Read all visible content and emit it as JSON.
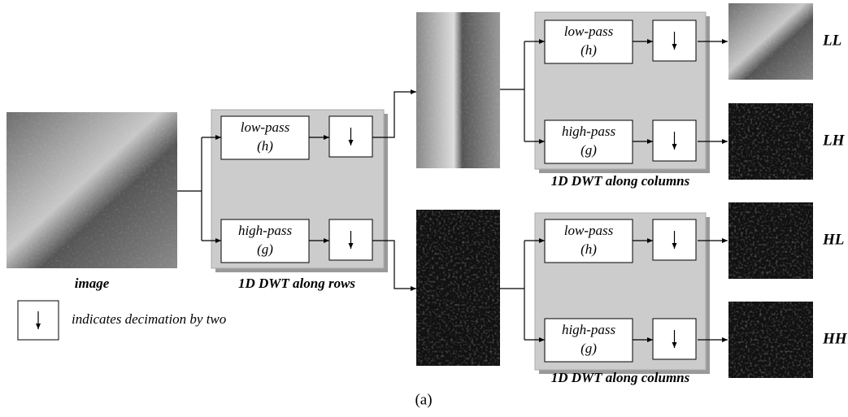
{
  "input": {
    "label": "image"
  },
  "stages": [
    {
      "label": "1D DWT along rows",
      "filters": [
        {
          "name": "low-pass",
          "symbol": "(h)"
        },
        {
          "name": "high-pass",
          "symbol": "(g)"
        }
      ]
    },
    {
      "label": "1D DWT along columns",
      "filters": [
        {
          "name": "low-pass",
          "symbol": "(h)"
        },
        {
          "name": "high-pass",
          "symbol": "(g)"
        }
      ]
    },
    {
      "label": "1D DWT along columns",
      "filters": [
        {
          "name": "low-pass",
          "symbol": "(h)"
        },
        {
          "name": "high-pass",
          "symbol": "(g)"
        }
      ]
    }
  ],
  "outputs": [
    "LL",
    "LH",
    "HL",
    "HH"
  ],
  "legend": "indicates decimation by two",
  "caption": "(a)"
}
